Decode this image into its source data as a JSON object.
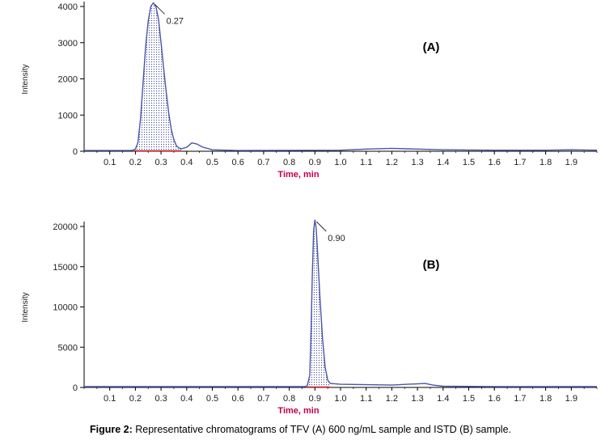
{
  "caption": {
    "label": "Figure 2:",
    "text": " Representative chromatograms of TFV (A) 600 ng/mL sample and ISTD (B) sample."
  },
  "colors": {
    "trace": "#4a55a8",
    "fill_dots": "#3a44a0",
    "axis_label": "#c0004f",
    "baseline_marker": "#d02020"
  },
  "chart_data": [
    {
      "type": "line",
      "panel_label": "(A)",
      "xlabel": "Time, min",
      "ylabel": "Intensity",
      "xlim": [
        0,
        2.0
      ],
      "ylim": [
        0,
        4000
      ],
      "x_ticks": [
        "0.1",
        "0.2",
        "0.3",
        "0.4",
        "0.5",
        "0.6",
        "0.7",
        "0.8",
        "0.9",
        "1.0",
        "1.1",
        "1.2",
        "1.3",
        "1.4",
        "1.5",
        "1.6",
        "1.7",
        "1.8",
        "1.9"
      ],
      "y_ticks": [
        "0",
        "1000",
        "2000",
        "3000",
        "4000"
      ],
      "peak": {
        "label": "0.27",
        "x": 0.27,
        "y": 4100,
        "integrated_from": 0.19,
        "integrated_to": 0.38
      },
      "x": [
        0.0,
        0.18,
        0.19,
        0.2,
        0.21,
        0.22,
        0.23,
        0.24,
        0.25,
        0.26,
        0.27,
        0.28,
        0.29,
        0.3,
        0.31,
        0.32,
        0.33,
        0.34,
        0.35,
        0.36,
        0.37,
        0.38,
        0.4,
        0.42,
        0.44,
        0.46,
        0.5,
        0.6,
        1.0,
        1.1,
        1.2,
        1.3,
        1.4,
        1.6,
        1.8,
        1.9,
        2.0
      ],
      "y": [
        20,
        20,
        30,
        60,
        250,
        900,
        1900,
        2900,
        3600,
        4000,
        4100,
        4000,
        3650,
        3000,
        2300,
        1650,
        1050,
        600,
        320,
        150,
        90,
        70,
        110,
        230,
        200,
        120,
        40,
        20,
        30,
        60,
        80,
        60,
        40,
        30,
        30,
        40,
        30
      ]
    },
    {
      "type": "line",
      "panel_label": "(B)",
      "xlabel": "Time, min",
      "ylabel": "Intensity",
      "xlim": [
        0,
        2.0
      ],
      "ylim": [
        0,
        20000
      ],
      "x_ticks": [
        "0.1",
        "0.2",
        "0.3",
        "0.4",
        "0.5",
        "0.6",
        "0.7",
        "0.8",
        "0.9",
        "1.0",
        "1.1",
        "1.2",
        "1.3",
        "1.4",
        "1.5",
        "1.6",
        "1.7",
        "1.8",
        "1.9"
      ],
      "y_ticks": [
        "0",
        "5000",
        "10000",
        "15000",
        "20000"
      ],
      "peak": {
        "label": "0.90",
        "x": 0.9,
        "y": 20800,
        "integrated_from": 0.87,
        "integrated_to": 0.96
      },
      "x": [
        0.0,
        0.86,
        0.87,
        0.88,
        0.885,
        0.89,
        0.895,
        0.9,
        0.905,
        0.91,
        0.92,
        0.93,
        0.94,
        0.95,
        0.96,
        0.98,
        1.0,
        1.1,
        1.2,
        1.3,
        1.33,
        1.36,
        1.4,
        1.6,
        1.8,
        1.9,
        2.0
      ],
      "y": [
        100,
        100,
        200,
        1500,
        7000,
        14000,
        19500,
        20800,
        19800,
        17000,
        11000,
        6000,
        2500,
        900,
        500,
        450,
        400,
        350,
        300,
        450,
        500,
        300,
        150,
        100,
        100,
        100,
        100
      ]
    }
  ]
}
